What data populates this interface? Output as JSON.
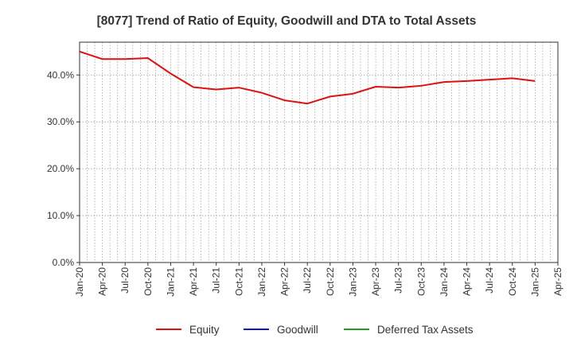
{
  "chart_data": {
    "type": "line",
    "title": "[8077]  Trend of Ratio of Equity, Goodwill and DTA to Total Assets",
    "xlabel": "",
    "ylabel": "",
    "ylim": [
      0,
      47
    ],
    "y_ticks": [
      0,
      10,
      20,
      30,
      40
    ],
    "y_tick_labels": [
      "0.0%",
      "10.0%",
      "20.0%",
      "30.0%",
      "40.0%"
    ],
    "x_tick_labels": [
      "Jan-20",
      "Apr-20",
      "Jul-20",
      "Oct-20",
      "Jan-21",
      "Apr-21",
      "Jul-21",
      "Oct-21",
      "Jan-22",
      "Apr-22",
      "Jul-22",
      "Oct-22",
      "Jan-23",
      "Apr-23",
      "Jul-23",
      "Oct-23",
      "Jan-24",
      "Apr-24",
      "Jul-24",
      "Oct-24",
      "Jan-25",
      "Apr-25"
    ],
    "grid": true,
    "legend_position": "bottom",
    "series": [
      {
        "name": "Equity",
        "color": "#dd1111",
        "x": [
          "Jan-20",
          "Apr-20",
          "Jul-20",
          "Oct-20",
          "Jan-21",
          "Apr-21",
          "Jul-21",
          "Oct-21",
          "Jan-22",
          "Apr-22",
          "Jul-22",
          "Oct-22",
          "Jan-23",
          "Apr-23",
          "Jul-23",
          "Oct-23",
          "Jan-24",
          "Apr-24",
          "Jul-24",
          "Oct-24",
          "Jan-25"
        ],
        "values": [
          45.0,
          43.4,
          43.4,
          43.6,
          40.3,
          37.4,
          36.9,
          37.3,
          36.2,
          34.6,
          33.9,
          35.4,
          36.0,
          37.5,
          37.3,
          37.7,
          38.5,
          38.7,
          39.0,
          39.3,
          38.7
        ]
      },
      {
        "name": "Goodwill",
        "color": "#1111cc",
        "x": [],
        "values": []
      },
      {
        "name": "Deferred Tax Assets",
        "color": "#229922",
        "x": [],
        "values": []
      }
    ]
  }
}
